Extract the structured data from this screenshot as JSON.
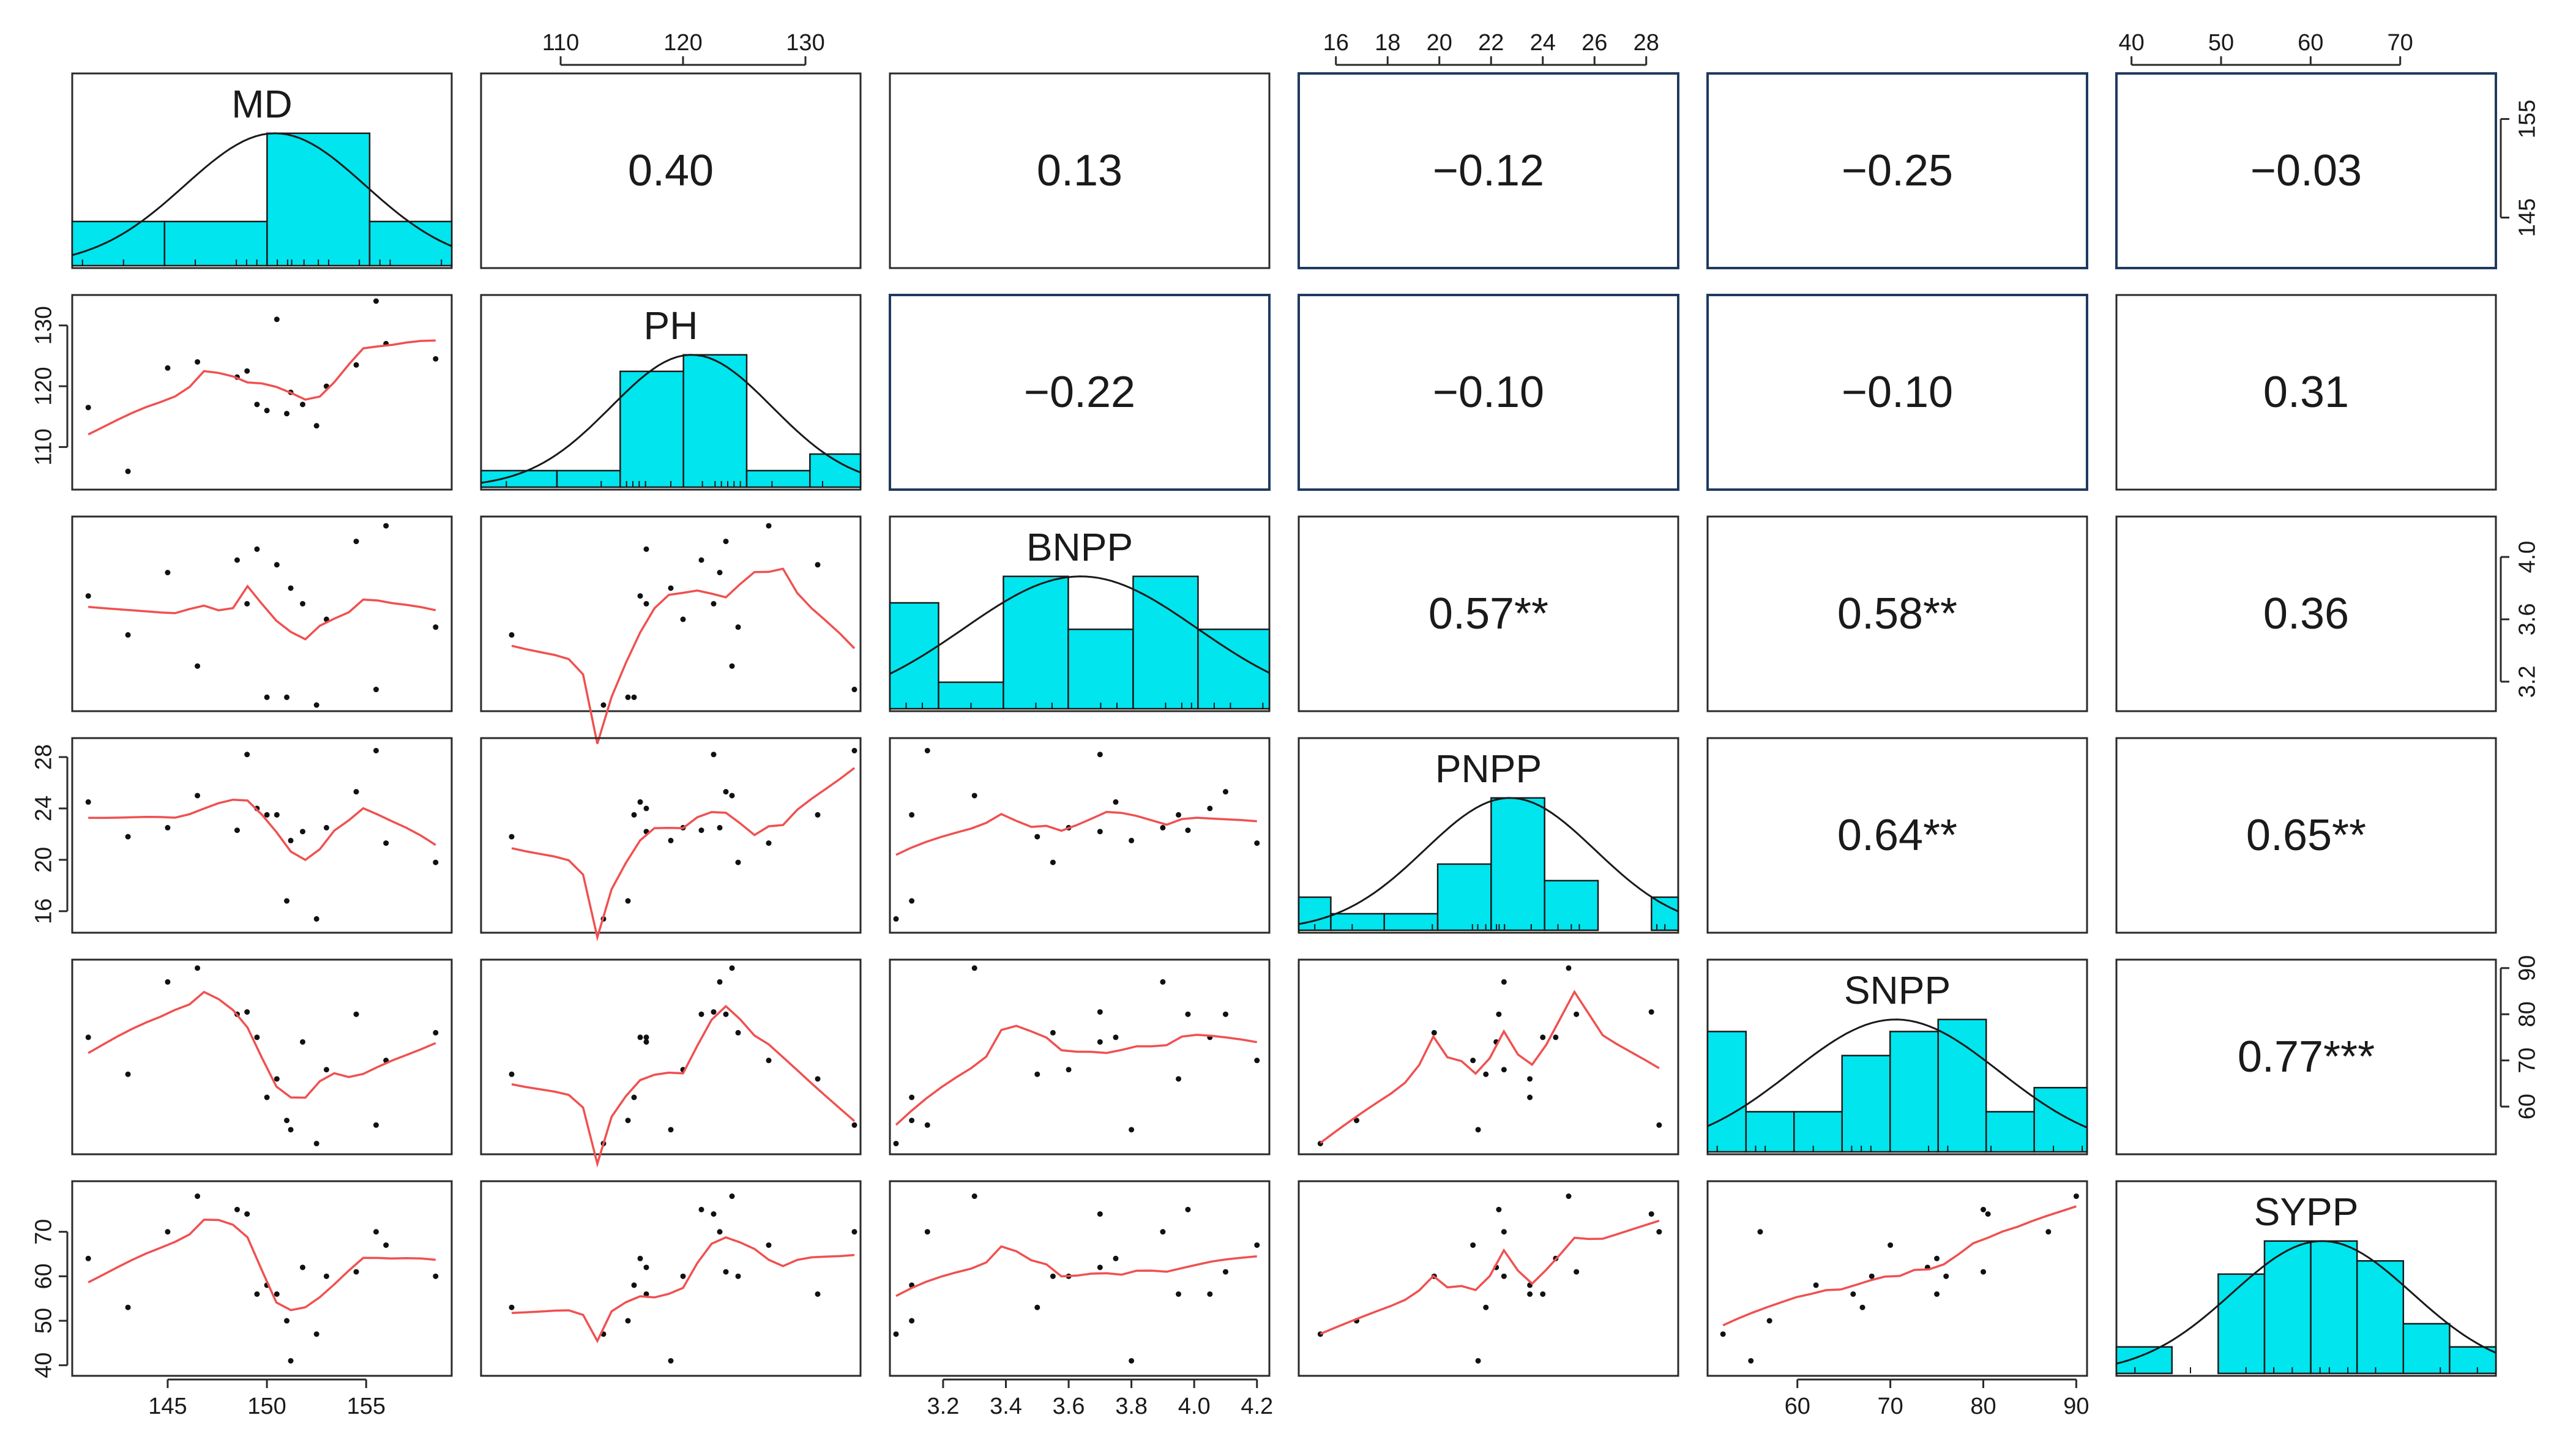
{
  "chart_data": {
    "type": "scatter-matrix",
    "variables": [
      "MD",
      "PH",
      "BNPP",
      "PNPP",
      "SNPP",
      "SYPP"
    ],
    "ranges": {
      "MD": [
        140.5,
        159
      ],
      "PH": [
        104,
        134
      ],
      "BNPP": [
        3.05,
        4.22
      ],
      "PNPP": [
        14.8,
        29.0
      ],
      "SNPP": [
        51.0,
        90.5
      ],
      "SYPP": [
        39.0,
        80.0
      ]
    },
    "ticks": {
      "MD": [
        "145",
        "150",
        "155"
      ],
      "PH": [
        "110",
        "120",
        "130"
      ],
      "BNPP": [
        "3.2",
        "3.6",
        "4.0"
      ],
      "BNPP_bottom": [
        "3.2",
        "3.4",
        "3.6",
        "3.8",
        "4.0",
        "4.2"
      ],
      "PNPP": [
        "16",
        "20",
        "24",
        "28"
      ],
      "PNPP_top": [
        "16",
        "18",
        "20",
        "22",
        "24",
        "26",
        "28"
      ],
      "SNPP": [
        "60",
        "70",
        "80",
        "90"
      ],
      "SNPP_bottom": [
        "60",
        "70",
        "80",
        "90"
      ],
      "SYPP": [
        "40",
        "50",
        "60",
        "70"
      ],
      "SYPP_top": [
        "40",
        "50",
        "60",
        "70"
      ],
      "MD_right": [
        "145",
        "155"
      ]
    },
    "correlations": [
      {
        "row": 0,
        "col": 1,
        "label": "0.40"
      },
      {
        "row": 0,
        "col": 2,
        "label": "0.13"
      },
      {
        "row": 0,
        "col": 3,
        "label": "−0.12"
      },
      {
        "row": 0,
        "col": 4,
        "label": "−0.25"
      },
      {
        "row": 0,
        "col": 5,
        "label": "−0.03"
      },
      {
        "row": 1,
        "col": 2,
        "label": "−0.22"
      },
      {
        "row": 1,
        "col": 3,
        "label": "−0.10"
      },
      {
        "row": 1,
        "col": 4,
        "label": "−0.10"
      },
      {
        "row": 1,
        "col": 5,
        "label": "0.31"
      },
      {
        "row": 2,
        "col": 3,
        "label": "0.57**"
      },
      {
        "row": 2,
        "col": 4,
        "label": "0.58**"
      },
      {
        "row": 2,
        "col": 5,
        "label": "0.36"
      },
      {
        "row": 3,
        "col": 4,
        "label": "0.64**"
      },
      {
        "row": 3,
        "col": 5,
        "label": "0.65**"
      },
      {
        "row": 4,
        "col": 5,
        "label": "0.77***"
      }
    ],
    "observations": {
      "MD": [
        141,
        143,
        145,
        146.5,
        148.5,
        149,
        149.5,
        150,
        150.5,
        151,
        151.2,
        151.8,
        152.5,
        153,
        154.5,
        155.5,
        156,
        158.5
      ],
      "PH": [
        116.5,
        106,
        123,
        124,
        121.5,
        122.5,
        117,
        116,
        131,
        115.5,
        119,
        117,
        113.5,
        120,
        123.5,
        134,
        127,
        124.5
      ],
      "BNPP": [
        3.75,
        3.5,
        3.9,
        3.3,
        3.98,
        3.7,
        4.05,
        3.1,
        3.95,
        3.1,
        3.8,
        3.7,
        3.05,
        3.6,
        4.1,
        3.15,
        4.2,
        3.55
      ],
      "PNPP": [
        24.5,
        21.8,
        22.5,
        25,
        22.3,
        28.2,
        24,
        23.5,
        23.5,
        16.8,
        21.5,
        22.2,
        15.4,
        22.5,
        25.3,
        28.5,
        21.3,
        19.8
      ],
      "SNPP": [
        75,
        67,
        87,
        90,
        80,
        80.5,
        75,
        62,
        66,
        57,
        55,
        74,
        52,
        68,
        80,
        56,
        70,
        76
      ],
      "SYPP": [
        64,
        53,
        70,
        78,
        75,
        74,
        56,
        58,
        56,
        50,
        41,
        62,
        47,
        60,
        61,
        70,
        67,
        60
      ]
    },
    "histograms": {
      "MD": [
        {
          "from": 140.5,
          "to": 145,
          "count": 2
        },
        {
          "from": 145,
          "to": 150,
          "count": 2
        },
        {
          "from": 150,
          "to": 155,
          "count": 6
        },
        {
          "from": 155,
          "to": 159,
          "count": 2
        }
      ],
      "PH": [
        {
          "from": 104,
          "to": 110,
          "count": 1
        },
        {
          "from": 110,
          "to": 115,
          "count": 1
        },
        {
          "from": 115,
          "to": 120,
          "count": 7
        },
        {
          "from": 120,
          "to": 125,
          "count": 8
        },
        {
          "from": 125,
          "to": 130,
          "count": 1
        },
        {
          "from": 130,
          "to": 134,
          "count": 2
        }
      ],
      "BNPP": [
        {
          "from": 3.05,
          "to": 3.2,
          "count": 4
        },
        {
          "from": 3.2,
          "to": 3.4,
          "count": 1
        },
        {
          "from": 3.4,
          "to": 3.6,
          "count": 5
        },
        {
          "from": 3.6,
          "to": 3.8,
          "count": 3
        },
        {
          "from": 3.8,
          "to": 4.0,
          "count": 5
        },
        {
          "from": 4.0,
          "to": 4.22,
          "count": 3
        }
      ],
      "PNPP": [
        {
          "from": 14.8,
          "to": 16,
          "count": 1
        },
        {
          "from": 16,
          "to": 18,
          "count": 0.5
        },
        {
          "from": 18,
          "to": 20,
          "count": 0.5
        },
        {
          "from": 20,
          "to": 22,
          "count": 2
        },
        {
          "from": 22,
          "to": 24,
          "count": 4
        },
        {
          "from": 24,
          "to": 26,
          "count": 1.5
        },
        {
          "from": 26,
          "to": 28,
          "count": 0
        },
        {
          "from": 28,
          "to": 29,
          "count": 1
        }
      ],
      "SNPP": [
        {
          "from": 51,
          "to": 55,
          "count": 3
        },
        {
          "from": 55,
          "to": 60,
          "count": 1
        },
        {
          "from": 60,
          "to": 65,
          "count": 1
        },
        {
          "from": 65,
          "to": 70,
          "count": 2.4
        },
        {
          "from": 70,
          "to": 75,
          "count": 3
        },
        {
          "from": 75,
          "to": 80,
          "count": 3.3
        },
        {
          "from": 80,
          "to": 85,
          "count": 1
        },
        {
          "from": 85,
          "to": 90.5,
          "count": 1.6
        }
      ],
      "SYPP": [
        {
          "from": 39,
          "to": 45,
          "count": 0.8
        },
        {
          "from": 45,
          "to": 50,
          "count": 0
        },
        {
          "from": 50,
          "to": 55,
          "count": 3
        },
        {
          "from": 55,
          "to": 60,
          "count": 4
        },
        {
          "from": 60,
          "to": 65,
          "count": 4
        },
        {
          "from": 65,
          "to": 70,
          "count": 3.4
        },
        {
          "from": 70,
          "to": 75,
          "count": 1.5
        },
        {
          "from": 75,
          "to": 80,
          "count": 0.8
        }
      ]
    },
    "grid": false,
    "colors": {
      "histogram": "#00e5ee",
      "smooth": "#f05050",
      "points": "#111111",
      "panel_border": "#2a2a2a",
      "highlight_border": "#1f3a5f"
    }
  }
}
